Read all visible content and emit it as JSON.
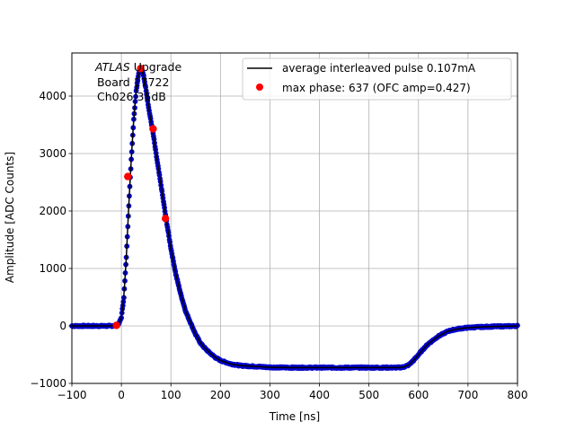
{
  "chart_data": {
    "type": "scatter",
    "xlabel": "Time [ns]",
    "ylabel": "Amplitude [ADC Counts]",
    "xlim": [
      -100,
      800
    ],
    "ylim": [
      -1000,
      4750
    ],
    "x_ticks": [
      -100,
      0,
      100,
      200,
      300,
      400,
      500,
      600,
      700,
      800
    ],
    "x_tick_labels": [
      "−100",
      "0",
      "100",
      "200",
      "300",
      "400",
      "500",
      "600",
      "700",
      "800"
    ],
    "y_ticks": [
      -1000,
      0,
      1000,
      2000,
      3000,
      4000
    ],
    "y_tick_labels": [
      "−1000",
      "0",
      "1000",
      "2000",
      "3000",
      "4000"
    ],
    "grid": true,
    "legend_position": "top-right",
    "annotation": {
      "line1_italic": "ATLAS",
      "line1_rest": " Upgrade",
      "line2": " Board 17722",
      "line3": " Ch026 35dB"
    },
    "colors": {
      "pulse_line": "#000000",
      "samples": "#0000cc",
      "max_phase": "#ff0000"
    },
    "series": [
      {
        "name": "average interleaved pulse 0.107mA",
        "kind": "line",
        "x": [
          -100,
          -50,
          -20,
          -10,
          -5,
          0,
          5,
          10,
          15,
          20,
          25,
          30,
          35,
          40,
          45,
          50,
          55,
          60,
          65,
          70,
          80,
          90,
          100,
          110,
          120,
          130,
          140,
          150,
          160,
          170,
          180,
          190,
          200,
          220,
          240,
          260,
          280,
          300,
          340,
          400,
          450,
          500,
          540,
          560,
          570,
          580,
          590,
          600,
          610,
          620,
          640,
          660,
          680,
          700,
          720,
          750,
          780,
          800
        ],
        "y": [
          0,
          0,
          0,
          10,
          40,
          150,
          500,
          1200,
          2100,
          2900,
          3600,
          4100,
          4400,
          4480,
          4350,
          4100,
          3800,
          3550,
          3300,
          3000,
          2450,
          1880,
          1350,
          900,
          550,
          250,
          50,
          -150,
          -300,
          -400,
          -480,
          -550,
          -600,
          -660,
          -690,
          -700,
          -710,
          -720,
          -725,
          -725,
          -725,
          -725,
          -725,
          -725,
          -715,
          -680,
          -600,
          -500,
          -400,
          -310,
          -180,
          -90,
          -50,
          -30,
          -20,
          -10,
          -5,
          0
        ]
      },
      {
        "name": "max phase: 637 (OFC amp=0.427)",
        "kind": "points",
        "x": [
          -10,
          13,
          39,
          64,
          89
        ],
        "y": [
          10,
          2600,
          4480,
          3430,
          1870
        ]
      }
    ]
  }
}
